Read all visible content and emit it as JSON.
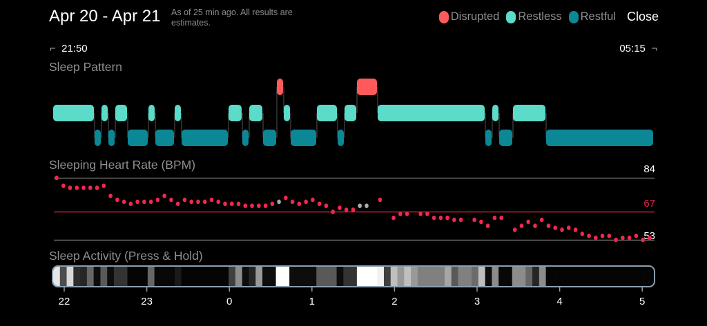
{
  "header": {
    "title": "Apr 20 - Apr 21",
    "subtitle": "As of 25 min ago. All results are estimates.",
    "close_label": "Close"
  },
  "legend": [
    {
      "label": "Disrupted",
      "color": "#fe5a5c"
    },
    {
      "label": "Restless",
      "color": "#5bdbc8"
    },
    {
      "label": "Restful",
      "color": "#0b8795"
    }
  ],
  "time_range": {
    "start": "21:50",
    "end": "05:15",
    "start_marker": "⌐",
    "end_marker": "¬"
  },
  "sleep_pattern": {
    "title": "Sleep Pattern",
    "segments_minutes_after_start": [
      [
        "restless",
        0,
        30
      ],
      [
        "restful",
        30,
        35
      ],
      [
        "restless",
        35,
        40
      ],
      [
        "restful",
        40,
        45
      ],
      [
        "restless",
        45,
        54
      ],
      [
        "restful",
        54,
        69
      ],
      [
        "restless",
        69,
        74
      ],
      [
        "restful",
        74,
        88
      ],
      [
        "restless",
        88,
        93
      ],
      [
        "restful",
        93,
        127
      ],
      [
        "restless",
        127,
        137
      ],
      [
        "restful",
        137,
        142
      ],
      [
        "restless",
        142,
        152
      ],
      [
        "restful",
        152,
        162
      ],
      [
        "disrupted",
        162,
        167
      ],
      [
        "restless",
        167,
        172
      ],
      [
        "restful",
        172,
        191
      ],
      [
        "restless",
        191,
        206
      ],
      [
        "restful",
        206,
        211
      ],
      [
        "restless",
        211,
        220
      ],
      [
        "disrupted",
        220,
        235
      ],
      [
        "restless",
        235,
        313
      ],
      [
        "restful",
        313,
        318
      ],
      [
        "restless",
        318,
        323
      ],
      [
        "restful",
        323,
        333
      ],
      [
        "restless",
        333,
        357
      ],
      [
        "restful",
        357,
        435
      ]
    ]
  },
  "heart_rate": {
    "title": "Sleeping Heart Rate (BPM)",
    "max_label": "84",
    "avg_label": "67",
    "min_label": "53",
    "max": 84,
    "avg": 67,
    "min": 53,
    "sample_interval_min": 5,
    "samples": [
      [
        0,
        84
      ],
      [
        1,
        80
      ],
      [
        2,
        79
      ],
      [
        3,
        79
      ],
      [
        4,
        79
      ],
      [
        5,
        79
      ],
      [
        6,
        79
      ],
      [
        7,
        80
      ],
      [
        8,
        75
      ],
      [
        9,
        73
      ],
      [
        10,
        72
      ],
      [
        11,
        71
      ],
      [
        12,
        72
      ],
      [
        13,
        72
      ],
      [
        14,
        72
      ],
      [
        15,
        73
      ],
      [
        16,
        75
      ],
      [
        17,
        73
      ],
      [
        18,
        71
      ],
      [
        19,
        73
      ],
      [
        20,
        72
      ],
      [
        21,
        72
      ],
      [
        22,
        72
      ],
      [
        23,
        73
      ],
      [
        24,
        72
      ],
      [
        25,
        71
      ],
      [
        26,
        71
      ],
      [
        27,
        71
      ],
      [
        28,
        70
      ],
      [
        29,
        70
      ],
      [
        30,
        70
      ],
      [
        31,
        70
      ],
      [
        32,
        71
      ],
      [
        33,
        72,
        "gray"
      ],
      [
        34,
        74
      ],
      [
        35,
        72
      ],
      [
        36,
        71
      ],
      [
        37,
        72
      ],
      [
        38,
        73
      ],
      [
        39,
        71
      ],
      [
        40,
        70
      ],
      [
        41,
        67
      ],
      [
        42,
        69
      ],
      [
        43,
        68
      ],
      [
        44,
        68
      ],
      [
        45,
        70,
        "gray"
      ],
      [
        46,
        70,
        "gray"
      ],
      [
        48,
        73
      ],
      [
        50,
        64
      ],
      [
        51,
        66
      ],
      [
        52,
        66
      ],
      [
        54,
        66
      ],
      [
        55,
        66
      ],
      [
        56,
        64
      ],
      [
        57,
        64
      ],
      [
        58,
        64
      ],
      [
        59,
        63
      ],
      [
        60,
        63
      ],
      [
        62,
        63
      ],
      [
        63,
        62
      ],
      [
        64,
        60
      ],
      [
        65,
        64
      ],
      [
        66,
        64
      ],
      [
        68,
        58
      ],
      [
        69,
        60
      ],
      [
        70,
        62
      ],
      [
        71,
        60
      ],
      [
        72,
        63
      ],
      [
        73,
        60
      ],
      [
        74,
        59
      ],
      [
        75,
        58
      ],
      [
        76,
        59
      ],
      [
        77,
        58
      ],
      [
        78,
        56
      ],
      [
        79,
        55
      ],
      [
        80,
        54
      ],
      [
        81,
        55
      ],
      [
        82,
        55
      ],
      [
        83,
        53
      ],
      [
        84,
        54
      ],
      [
        85,
        54
      ],
      [
        86,
        55
      ],
      [
        87,
        53
      ],
      [
        88,
        54
      ]
    ],
    "point_color": "#f0284f",
    "avg_line_color": "#c21f3f"
  },
  "activity": {
    "title": "Sleep Activity (Press & Hold)",
    "intensity_per_5min": [
      0.9,
      0.3,
      0.85,
      0.18,
      0.15,
      0.4,
      0.05,
      0.35,
      0.05,
      0.2,
      0.2,
      0.02,
      0.02,
      0.02,
      0.4,
      0.03,
      0.03,
      0.03,
      0.1,
      0.02,
      0.02,
      0.02,
      0.02,
      0.02,
      0.02,
      0.02,
      0.25,
      0.55,
      0.05,
      0.15,
      0.6,
      0.05,
      0.05,
      1.0,
      1.0,
      0.05,
      0.05,
      0.05,
      0.05,
      0.35,
      0.35,
      0.35,
      0.05,
      0.2,
      0.2,
      1.0,
      1.0,
      1.0,
      0.95,
      0.25,
      0.75,
      0.6,
      0.75,
      0.6,
      0.5,
      0.5,
      0.5,
      0.5,
      0.65,
      0.35,
      0.5,
      0.5,
      0.42,
      0.75,
      0.05,
      0.55,
      0.03,
      0.03,
      0.55,
      0.55,
      0.4,
      0.15,
      0.55,
      0.02,
      0.02,
      0.02,
      0.02,
      0.02,
      0.02,
      0.02,
      0.02,
      0.02,
      0.02,
      0.02,
      0.02,
      0.02,
      0.02,
      0.02,
      0.02
    ],
    "hour_ticks": [
      "22",
      "23",
      "0",
      "1",
      "2",
      "3",
      "4",
      "5"
    ]
  }
}
